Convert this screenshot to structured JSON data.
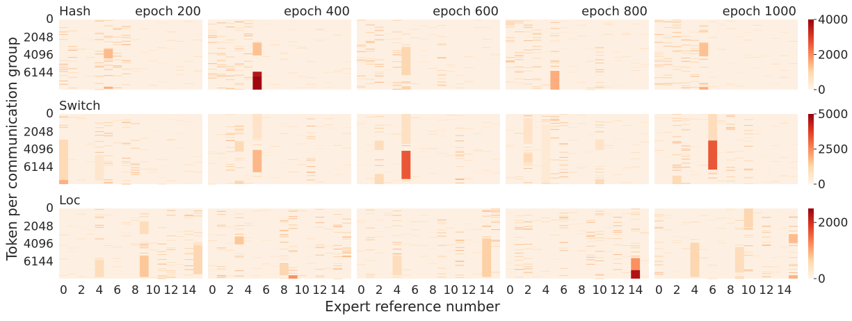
{
  "figure": {
    "ylabel": "Token per communication group",
    "xlabel": "Expert reference number",
    "colors": {
      "low": "#fff5eb",
      "high": "#99000d",
      "background": "#fdf0e2"
    }
  },
  "chart_data": {
    "type": "heatmap",
    "x_ticks": [
      "0",
      "2",
      "4",
      "6",
      "8",
      "10",
      "12",
      "14"
    ],
    "y_ticks": [
      "0",
      "2048",
      "4096",
      "6144"
    ],
    "columns": [
      "epoch 200",
      "epoch 400",
      "epoch 600",
      "epoch 800",
      "epoch 1000"
    ],
    "rows": [
      {
        "label": "Hash",
        "colorbar": {
          "max": 4000,
          "ticks": [
            "0",
            "2000",
            "4000"
          ]
        },
        "panels": [
          {
            "title": "epoch 200",
            "hot": [
              {
                "expert": 5,
                "from": 3450,
                "to": 4550,
                "value": 1300
              },
              {
                "expert": 5,
                "from": 7850,
                "to": 8100,
                "value": 1500
              }
            ],
            "dense": [
              0,
              1,
              4,
              5,
              6,
              7
            ]
          },
          {
            "title": "epoch 400",
            "hot": [
              {
                "expert": 5,
                "from": 2700,
                "to": 4200,
                "value": 1200
              },
              {
                "expert": 5,
                "from": 6100,
                "to": 6600,
                "value": 3600
              },
              {
                "expert": 5,
                "from": 6600,
                "to": 8192,
                "value": 3900
              }
            ],
            "dense": [
              0,
              1,
              2,
              3,
              4
            ]
          },
          {
            "title": "epoch 600",
            "hot": [
              {
                "expert": 5,
                "from": 3200,
                "to": 6500,
                "value": 800
              },
              {
                "expert": 5,
                "from": 7800,
                "to": 8192,
                "value": 900
              }
            ],
            "dense": [
              0,
              1,
              2,
              4,
              5,
              9
            ]
          },
          {
            "title": "epoch 800",
            "hot": [
              {
                "expert": 5,
                "from": 6000,
                "to": 8192,
                "value": 1500
              }
            ],
            "dense": [
              0,
              1,
              2,
              3,
              5,
              10
            ]
          },
          {
            "title": "epoch 1000",
            "hot": [
              {
                "expert": 5,
                "from": 2700,
                "to": 4300,
                "value": 1200
              },
              {
                "expert": 5,
                "from": 7900,
                "to": 8192,
                "value": 1500
              }
            ],
            "dense": [
              0,
              1,
              2,
              3,
              4,
              5
            ]
          }
        ]
      },
      {
        "label": "Switch",
        "colorbar": {
          "max": 5000,
          "ticks": [
            "0",
            "2500",
            "5000"
          ]
        },
        "panels": [
          {
            "title": "",
            "hot": [
              {
                "expert": 0,
                "from": 3000,
                "to": 7700,
                "value": 900
              },
              {
                "expert": 0,
                "from": 7700,
                "to": 8192,
                "value": 1800
              },
              {
                "expert": 4,
                "from": 4800,
                "to": 7800,
                "value": 500
              }
            ],
            "dense": [
              0,
              4,
              5,
              7,
              8
            ]
          },
          {
            "title": "",
            "hot": [
              {
                "expert": 5,
                "from": 0,
                "to": 2900,
                "value": 600
              },
              {
                "expert": 5,
                "from": 4200,
                "to": 6800,
                "value": 1700
              },
              {
                "expert": 3,
                "from": 3200,
                "to": 4400,
                "value": 900
              },
              {
                "expert": 3,
                "from": 7800,
                "to": 8192,
                "value": 1000
              }
            ],
            "dense": [
              2,
              3,
              5,
              11
            ]
          },
          {
            "title": "",
            "hot": [
              {
                "expert": 5,
                "from": 0,
                "to": 3500,
                "value": 700
              },
              {
                "expert": 5,
                "from": 4300,
                "to": 7600,
                "value": 3300
              },
              {
                "expert": 2,
                "from": 3300,
                "to": 4200,
                "value": 800
              },
              {
                "expert": 2,
                "from": 7000,
                "to": 8192,
                "value": 900
              }
            ],
            "dense": [
              2,
              5,
              11
            ]
          },
          {
            "title": "",
            "hot": [
              {
                "expert": 2,
                "from": 500,
                "to": 3500,
                "value": 600
              },
              {
                "expert": 2,
                "from": 4600,
                "to": 5600,
                "value": 900
              },
              {
                "expert": 4,
                "from": 1200,
                "to": 8000,
                "value": 400
              },
              {
                "expert": 10,
                "from": 3000,
                "to": 4200,
                "value": 600
              },
              {
                "expert": 10,
                "from": 7600,
                "to": 8192,
                "value": 900
              }
            ],
            "dense": [
              2,
              4,
              5,
              6,
              10
            ]
          },
          {
            "title": "",
            "hot": [
              {
                "expert": 6,
                "from": 0,
                "to": 3100,
                "value": 800
              },
              {
                "expert": 6,
                "from": 3100,
                "to": 6500,
                "value": 3300
              },
              {
                "expert": 2,
                "from": 7200,
                "to": 8192,
                "value": 900
              }
            ],
            "dense": [
              2,
              3,
              6,
              8,
              10
            ]
          }
        ]
      },
      {
        "label": "Loc",
        "colorbar": {
          "max": 2500,
          "ticks": [
            "0",
            "2000"
          ]
        },
        "panels": [
          {
            "title": "",
            "hot": [
              {
                "expert": 9,
                "from": 1500,
                "to": 3000,
                "value": 400
              },
              {
                "expert": 9,
                "from": 5500,
                "to": 8000,
                "value": 700
              },
              {
                "expert": 15,
                "from": 4300,
                "to": 7600,
                "value": 500
              },
              {
                "expert": 4,
                "from": 6000,
                "to": 8000,
                "value": 400
              }
            ],
            "dense": [
              4,
              9,
              11,
              12,
              14,
              15
            ]
          },
          {
            "title": "",
            "hot": [
              {
                "expert": 3,
                "from": 3300,
                "to": 4200,
                "value": 700
              },
              {
                "expert": 8,
                "from": 6500,
                "to": 7800,
                "value": 500
              },
              {
                "expert": 9,
                "from": 7800,
                "to": 8192,
                "value": 1200
              }
            ],
            "dense": [
              1,
              3,
              8,
              9,
              12,
              14,
              15
            ]
          },
          {
            "title": "",
            "hot": [
              {
                "expert": 14,
                "from": 3500,
                "to": 8000,
                "value": 600
              },
              {
                "expert": 4,
                "from": 5500,
                "to": 7800,
                "value": 400
              }
            ],
            "dense": [
              1,
              4,
              9,
              11,
              14,
              15
            ]
          },
          {
            "title": "",
            "hot": [
              {
                "expert": 14,
                "from": 5800,
                "to": 7200,
                "value": 1200
              },
              {
                "expert": 14,
                "from": 7200,
                "to": 8192,
                "value": 2300
              }
            ],
            "dense": [
              1,
              2,
              6,
              9,
              10,
              12,
              14
            ]
          },
          {
            "title": "",
            "hot": [
              {
                "expert": 4,
                "from": 4000,
                "to": 8000,
                "value": 500
              },
              {
                "expert": 9,
                "from": 4500,
                "to": 7500,
                "value": 400
              },
              {
                "expert": 10,
                "from": 0,
                "to": 2200,
                "value": 500
              },
              {
                "expert": 15,
                "from": 3000,
                "to": 4000,
                "value": 800
              },
              {
                "expert": 15,
                "from": 7800,
                "to": 8192,
                "value": 900
              }
            ],
            "dense": [
              0,
              4,
              9,
              10,
              12,
              15
            ]
          }
        ]
      }
    ]
  }
}
